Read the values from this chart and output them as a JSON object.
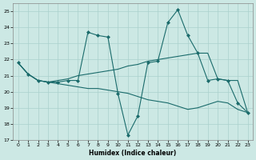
{
  "xlabel": "Humidex (Indice chaleur)",
  "background_color": "#cce8e4",
  "grid_color": "#aad0cc",
  "line_color": "#1a6b6b",
  "xlim": [
    -0.5,
    23.5
  ],
  "ylim": [
    17,
    25.5
  ],
  "yticks": [
    17,
    18,
    19,
    20,
    21,
    22,
    23,
    24,
    25
  ],
  "xticks": [
    0,
    1,
    2,
    3,
    4,
    5,
    6,
    7,
    8,
    9,
    10,
    11,
    12,
    13,
    14,
    15,
    16,
    17,
    18,
    19,
    20,
    21,
    22,
    23
  ],
  "series": [
    {
      "x": [
        0,
        1,
        2,
        3,
        4,
        5,
        6,
        7,
        8,
        9,
        10,
        11,
        12,
        13,
        14,
        15,
        16,
        17,
        18,
        19,
        20,
        21,
        22,
        23
      ],
      "y": [
        21.8,
        21.1,
        20.7,
        20.6,
        20.6,
        20.7,
        20.7,
        23.7,
        23.5,
        23.4,
        19.9,
        17.3,
        18.5,
        21.8,
        21.9,
        24.3,
        25.1,
        23.5,
        22.4,
        20.7,
        20.8,
        20.7,
        19.3,
        18.7
      ],
      "marker": "D",
      "markersize": 2.0,
      "linewidth": 0.8
    },
    {
      "x": [
        0,
        1,
        2,
        3,
        4,
        5,
        6,
        7,
        8,
        9,
        10,
        11,
        12,
        13,
        14,
        15,
        16,
        17,
        18,
        19,
        20,
        21,
        22,
        23
      ],
      "y": [
        21.8,
        21.1,
        20.7,
        20.6,
        20.7,
        20.8,
        21.0,
        21.1,
        21.2,
        21.3,
        21.4,
        21.6,
        21.7,
        21.9,
        22.0,
        22.1,
        22.2,
        22.3,
        22.4,
        22.4,
        20.8,
        20.7,
        20.7,
        18.7
      ],
      "marker": null,
      "linewidth": 0.8
    },
    {
      "x": [
        0,
        1,
        2,
        3,
        4,
        5,
        6,
        7,
        8,
        9,
        10,
        11,
        12,
        13,
        14,
        15,
        16,
        17,
        18,
        19,
        20,
        21,
        22,
        23
      ],
      "y": [
        21.8,
        21.1,
        20.7,
        20.6,
        20.5,
        20.4,
        20.3,
        20.2,
        20.2,
        20.1,
        20.0,
        19.9,
        19.7,
        19.5,
        19.4,
        19.3,
        19.1,
        18.9,
        19.0,
        19.2,
        19.4,
        19.3,
        18.9,
        18.7
      ],
      "marker": null,
      "linewidth": 0.8
    }
  ]
}
